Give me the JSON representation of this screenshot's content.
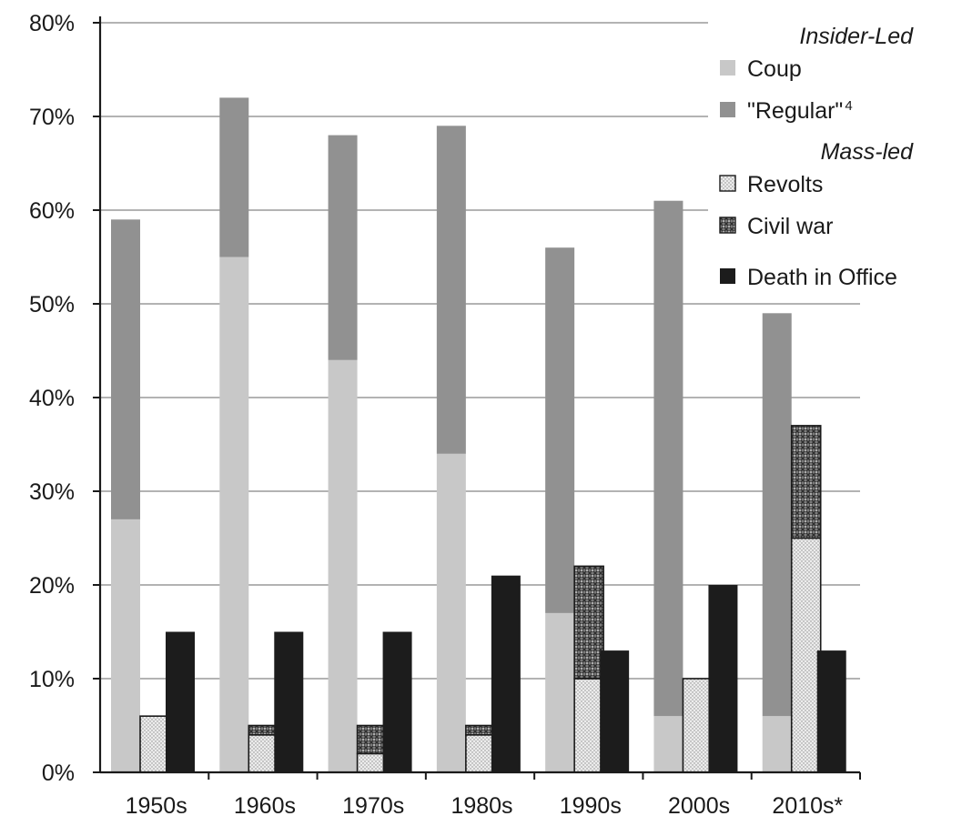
{
  "chart_data": {
    "type": "bar",
    "stacked_groups": true,
    "categories": [
      "1950s",
      "1960s",
      "1970s",
      "1980s",
      "1990s",
      "2000s",
      "2010s*"
    ],
    "ylim": [
      0,
      80
    ],
    "yticks": [
      0,
      10,
      20,
      30,
      40,
      50,
      60,
      70,
      80
    ],
    "ytick_labels": [
      "0%",
      "10%",
      "20%",
      "30%",
      "40%",
      "50%",
      "60%",
      "70%",
      "80%"
    ],
    "grid": "horizontal",
    "legend_position": "top-right",
    "legend_groups": [
      {
        "heading": "Insider-Led",
        "items": [
          {
            "label": "Coup",
            "series": "coup"
          },
          {
            "label": "\"Regular\"",
            "suffix": "4",
            "series": "regular"
          }
        ]
      },
      {
        "heading": "Mass-led",
        "items": [
          {
            "label": "Revolts",
            "series": "revolts"
          },
          {
            "label": "Civil war",
            "series": "civil_war"
          }
        ]
      },
      {
        "heading": "",
        "items": [
          {
            "label": "Death in Office",
            "series": "death"
          }
        ]
      }
    ],
    "series": [
      {
        "key": "coup",
        "name": "Coup",
        "stack": "insider",
        "color": "#c8c8c8",
        "pattern": "solid",
        "values": [
          27,
          55,
          44,
          34,
          17,
          6,
          6
        ]
      },
      {
        "key": "regular",
        "name": "\"Regular\"",
        "stack": "insider",
        "color": "#919191",
        "pattern": "solid",
        "values": [
          32,
          17,
          24,
          35,
          39,
          55,
          43
        ]
      },
      {
        "key": "revolts",
        "name": "Revolts",
        "stack": "mass",
        "color": "#e4e4e4",
        "pattern": "dots",
        "values": [
          6,
          4,
          2,
          4,
          10,
          10,
          25
        ]
      },
      {
        "key": "civil_war",
        "name": "Civil war",
        "stack": "mass",
        "color": "#6e6e6e",
        "pattern": "crosshatch",
        "values": [
          0,
          1,
          3,
          1,
          12,
          0,
          12
        ]
      },
      {
        "key": "death",
        "name": "Death in Office",
        "stack": "death",
        "color": "#1c1c1c",
        "pattern": "solid",
        "values": [
          15,
          15,
          15,
          21,
          13,
          20,
          13
        ]
      }
    ]
  }
}
